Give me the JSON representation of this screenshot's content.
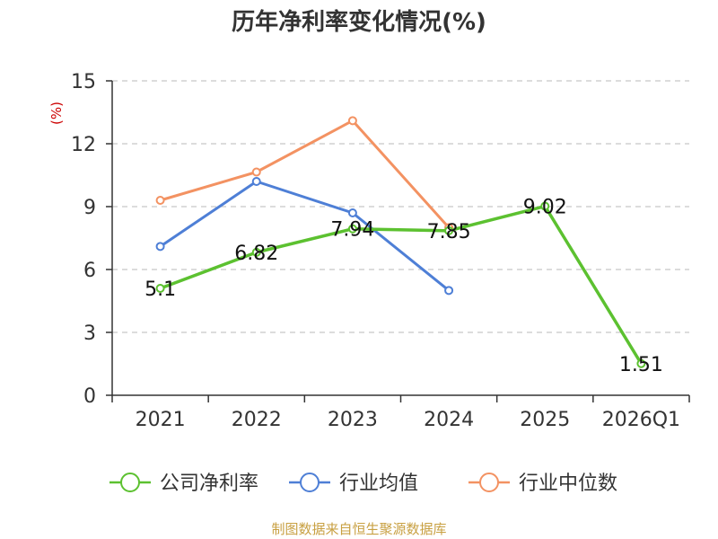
{
  "chart_data": {
    "type": "line",
    "title": "历年净利率变化情况(%)",
    "unit_label": "(%)",
    "categories": [
      "2021",
      "2022",
      "2023",
      "2024",
      "2025",
      "2026Q1"
    ],
    "y_ticks": [
      "0",
      "3",
      "6",
      "9",
      "12",
      "15"
    ],
    "ylim": [
      0,
      15
    ],
    "grid": true,
    "legend_position": "bottom",
    "series": [
      {
        "name": "公司净利率",
        "color": "#5cc130",
        "values": [
          5.1,
          6.82,
          7.94,
          7.85,
          9.02,
          1.51
        ],
        "labels": [
          "5.1",
          "6.82",
          "7.94",
          "7.85",
          "9.02",
          "1.51"
        ]
      },
      {
        "name": "行业均值",
        "color": "#4e7fd6",
        "values": [
          7.1,
          10.2,
          8.7,
          5.0,
          null,
          null
        ]
      },
      {
        "name": "行业中位数",
        "color": "#f39262",
        "values": [
          9.3,
          10.65,
          13.1,
          8.0,
          null,
          null
        ]
      }
    ],
    "source": "制图数据来自恒生聚源数据库"
  }
}
